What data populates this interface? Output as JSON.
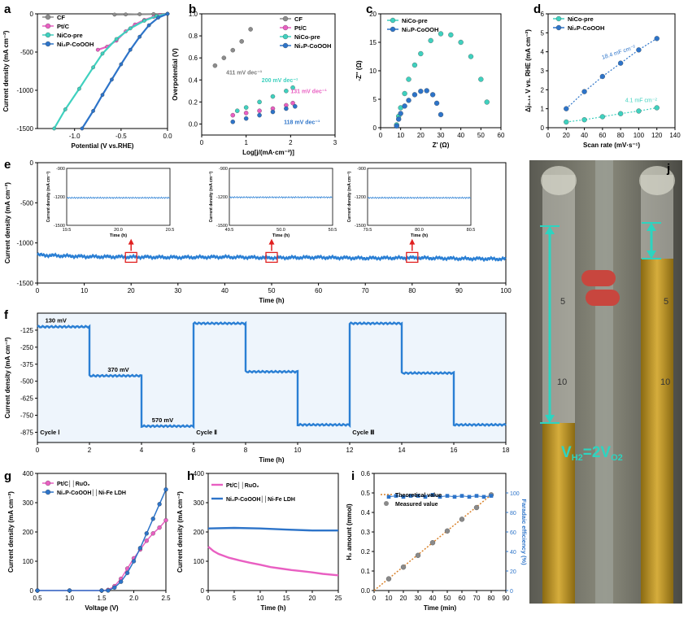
{
  "panel_letters": [
    "a",
    "b",
    "c",
    "d",
    "e",
    "f",
    "g",
    "h",
    "i",
    "j"
  ],
  "colors": {
    "CF": "#8c8c8c",
    "PtC": "#e95fc2",
    "NiCo": "#3fd1bf",
    "Ni2P": "#2d74c9",
    "fitline": "#d9822b",
    "teal_arrow": "#2dd4c0",
    "trace_blue": "#2a7fd4",
    "red_box": "#e02020"
  },
  "photo_j": {
    "label_html": "VH₂=2VO₂",
    "label_parts": [
      "V",
      "H2",
      "=2V",
      "O2"
    ],
    "tube_ticks_left": [
      "5",
      "10"
    ],
    "tube_ticks_right": [
      "5",
      "10"
    ]
  },
  "chart_data": [
    {
      "panel": "a",
      "type": "line",
      "title": "",
      "xlabel": "Potential (V vs.RHE)",
      "ylabel": "Current density (mA cm⁻²)",
      "xlim": [
        -1.4,
        0.0
      ],
      "ylim": [
        -1500,
        0
      ],
      "xticks": [
        "-1.0",
        "-0.5",
        "0.0"
      ],
      "yticks": [
        "0",
        "-500",
        "-1000",
        "-1500"
      ],
      "legend": "top-left",
      "series": [
        {
          "name": "CF",
          "x": [
            -0.57,
            -0.45,
            -0.3,
            -0.15,
            0.0
          ],
          "y": [
            -10,
            -8,
            -5,
            -3,
            0
          ]
        },
        {
          "name": "Pt/C",
          "x": [
            -0.75,
            -0.65,
            -0.55,
            -0.45,
            -0.35,
            -0.25,
            -0.15,
            -0.08,
            0.0
          ],
          "y": [
            -470,
            -430,
            -350,
            -230,
            -140,
            -80,
            -40,
            -15,
            0
          ]
        },
        {
          "name": "NiCo-pre",
          "x": [
            -1.22,
            -1.1,
            -0.95,
            -0.8,
            -0.7,
            -0.55,
            -0.4,
            -0.25,
            -0.12,
            0.0
          ],
          "y": [
            -1500,
            -1250,
            -980,
            -700,
            -520,
            -330,
            -190,
            -90,
            -30,
            0
          ]
        },
        {
          "name": "Ni2P-CoOOH",
          "x": [
            -0.92,
            -0.8,
            -0.7,
            -0.6,
            -0.5,
            -0.4,
            -0.3,
            -0.2,
            -0.1,
            0.0
          ],
          "y": [
            -1500,
            -1270,
            -1060,
            -860,
            -660,
            -470,
            -300,
            -150,
            -50,
            0
          ]
        }
      ],
      "legend_entries": [
        "CF",
        "Pt/C",
        "NiCo-pre",
        "Ni₂P-CoOOH"
      ]
    },
    {
      "panel": "b",
      "type": "line",
      "title": "",
      "xlabel": "Log[j/(mA·cm⁻²)]",
      "ylabel": "Overpotential (V)",
      "xlim": [
        0,
        3
      ],
      "ylim": [
        -0.1,
        1.0
      ],
      "xticks": [
        "0",
        "1",
        "2",
        "3"
      ],
      "yticks": [
        "0.0",
        "0.2",
        "0.4",
        "0.6",
        "0.8",
        "1.0"
      ],
      "legend": "top-right",
      "series": [
        {
          "name": "CF",
          "x": [
            0.3,
            0.5,
            0.7,
            0.9,
            1.1
          ],
          "y": [
            0.53,
            0.6,
            0.67,
            0.75,
            0.86
          ]
        },
        {
          "name": "NiCo-pre",
          "x": [
            0.8,
            1.0,
            1.3,
            1.6,
            1.9,
            2.05
          ],
          "y": [
            0.12,
            0.15,
            0.2,
            0.25,
            0.3,
            0.33
          ]
        },
        {
          "name": "Pt/C",
          "x": [
            0.7,
            1.0,
            1.3,
            1.6,
            1.9,
            2.05
          ],
          "y": [
            0.08,
            0.1,
            0.12,
            0.14,
            0.17,
            0.19
          ]
        },
        {
          "name": "Ni2P-CoOOH",
          "x": [
            0.7,
            1.0,
            1.3,
            1.6,
            1.9,
            2.1
          ],
          "y": [
            0.02,
            0.05,
            0.08,
            0.11,
            0.14,
            0.16
          ]
        }
      ],
      "annotations": [
        "411 mV dec⁻¹",
        "200 mV dec⁻¹",
        "131 mV dec⁻¹",
        "118 mV dec⁻¹"
      ],
      "legend_entries": [
        "CF",
        "Pt/C",
        "NiCo-pre",
        "Ni₂P-CoOOH"
      ]
    },
    {
      "panel": "c",
      "type": "scatter",
      "title": "",
      "xlabel": "Z' (Ω)",
      "ylabel": "-Z'' (Ω)",
      "xlim": [
        0,
        60
      ],
      "ylim": [
        0,
        20
      ],
      "xticks": [
        "0",
        "10",
        "20",
        "30",
        "40",
        "50",
        "60"
      ],
      "yticks": [
        "0",
        "5",
        "10",
        "15",
        "20"
      ],
      "legend": "top-left",
      "series": [
        {
          "name": "NiCo-pre",
          "x": [
            8,
            9,
            10,
            12,
            14,
            17,
            20,
            25,
            30,
            35,
            40,
            45,
            50,
            53
          ],
          "y": [
            0.5,
            2,
            3.5,
            6,
            8.5,
            11,
            13,
            15.3,
            16.5,
            16.3,
            15,
            12.5,
            8.5,
            4.5
          ]
        },
        {
          "name": "Ni2P-CoOOH",
          "x": [
            8,
            9,
            10,
            12,
            14,
            17,
            20,
            23,
            26,
            28,
            30
          ],
          "y": [
            0.3,
            1.5,
            2.5,
            3.8,
            4.8,
            5.8,
            6.4,
            6.5,
            5.8,
            4.3,
            2.3
          ]
        }
      ],
      "legend_entries": [
        "NiCo-pre",
        "Ni₂P-CoOOH"
      ]
    },
    {
      "panel": "d",
      "type": "scatter",
      "title": "",
      "xlabel": "Scan rate (mV·s⁻¹)",
      "ylabel": "Δj₀.₁₄ V vs. RHE (mA cm⁻²)",
      "xlim": [
        0,
        140
      ],
      "ylim": [
        0,
        6
      ],
      "xticks": [
        "0",
        "20",
        "40",
        "60",
        "80",
        "100",
        "120",
        "140"
      ],
      "yticks": [
        "0",
        "1",
        "2",
        "3",
        "4",
        "5",
        "6"
      ],
      "legend": "top-left",
      "series": [
        {
          "name": "NiCo-pre",
          "x": [
            20,
            40,
            60,
            80,
            100,
            120
          ],
          "y": [
            0.3,
            0.42,
            0.58,
            0.74,
            0.88,
            1.05
          ]
        },
        {
          "name": "Ni2P-CoOOH",
          "x": [
            20,
            40,
            60,
            80,
            100,
            120
          ],
          "y": [
            1.0,
            1.9,
            2.7,
            3.4,
            4.1,
            4.7
          ]
        }
      ],
      "annotations": [
        "18.4 mF cm⁻²",
        "4.1 mF cm⁻²"
      ],
      "legend_entries": [
        "NiCo-pre",
        "Ni₂P-CoOOH"
      ]
    },
    {
      "panel": "e",
      "type": "line",
      "title": "",
      "xlabel": "Time (h)",
      "ylabel": "Current density (mA cm⁻²)",
      "xlim": [
        0,
        100
      ],
      "ylim": [
        -1500,
        0
      ],
      "xticks": [
        "0",
        "10",
        "20",
        "30",
        "40",
        "50",
        "60",
        "70",
        "80",
        "90",
        "100"
      ],
      "yticks": [
        "0",
        "-500",
        "-1000",
        "-1500"
      ],
      "series": [
        {
          "name": "",
          "x": [
            0,
            10,
            20,
            30,
            40,
            50,
            60,
            70,
            80,
            90,
            100
          ],
          "y": [
            -1150,
            -1170,
            -1175,
            -1180,
            -1175,
            -1185,
            -1180,
            -1190,
            -1185,
            -1195,
            -1200
          ]
        }
      ],
      "insets": [
        {
          "xlim": [
            19.5,
            20.5
          ],
          "ylim": [
            -1500,
            -900
          ],
          "xticks": [
            "19.5",
            "20.0",
            "20.5"
          ],
          "yticks": [
            "-900",
            "-1200",
            "-1500"
          ],
          "xlabel": "Time (h)",
          "ylabel": "Current density (mA cm⁻²)",
          "level": -1210
        },
        {
          "xlim": [
            49.5,
            50.5
          ],
          "ylim": [
            -1500,
            -900
          ],
          "xticks": [
            "49.5",
            "50.0",
            "50.5"
          ],
          "yticks": [
            "-900",
            "-1200",
            "-1500"
          ],
          "xlabel": "Time (h)",
          "ylabel": "Current density (mA cm⁻²)",
          "level": -1205
        },
        {
          "xlim": [
            79.5,
            80.5
          ],
          "ylim": [
            -1500,
            -900
          ],
          "xticks": [
            "79.5",
            "80.0",
            "80.5"
          ],
          "yticks": [
            "-900",
            "-1200",
            "-1500"
          ],
          "xlabel": "Time (h)",
          "ylabel": "Current density (mA cm⁻²)",
          "level": -1210
        }
      ]
    },
    {
      "panel": "f",
      "type": "line",
      "title": "",
      "xlabel": "Time (h)",
      "ylabel": "Current density (mA cm⁻²)",
      "xlim": [
        0,
        18
      ],
      "ylim": [
        -950,
        0
      ],
      "xticks": [
        "0",
        "2",
        "4",
        "6",
        "8",
        "10",
        "12",
        "14",
        "16",
        "18"
      ],
      "yticks": [
        "-125",
        "-250",
        "-375",
        "-500",
        "-625",
        "-750",
        "-875"
      ],
      "series": [
        {
          "name": "",
          "x": [
            0,
            2,
            2,
            4,
            4,
            6,
            6,
            8,
            8,
            10,
            10,
            12,
            12,
            14,
            14,
            16,
            16,
            18
          ],
          "y": [
            -100,
            -100,
            -460,
            -460,
            -830,
            -830,
            -75,
            -75,
            -430,
            -430,
            -820,
            -820,
            -75,
            -75,
            -440,
            -440,
            -820,
            -820
          ]
        }
      ],
      "annotations": [
        "130 mV",
        "370 mV",
        "570 mV",
        "Cycle Ⅰ",
        "Cycle Ⅱ",
        "Cycle Ⅲ"
      ]
    },
    {
      "panel": "g",
      "type": "line",
      "title": "",
      "xlabel": "Voltage (V)",
      "ylabel": "Current density (mA cm⁻²)",
      "xlim": [
        0.5,
        2.5
      ],
      "ylim": [
        0,
        400
      ],
      "xticks": [
        "0.5",
        "1.0",
        "1.5",
        "2.0",
        "2.5"
      ],
      "yticks": [
        "0",
        "100",
        "200",
        "300",
        "400"
      ],
      "legend": "top-left",
      "series": [
        {
          "name": "Pt/C||RuO2",
          "x": [
            0.5,
            1.0,
            1.5,
            1.6,
            1.7,
            1.8,
            1.9,
            2.0,
            2.1,
            2.2,
            2.3,
            2.4,
            2.5
          ],
          "y": [
            0,
            0,
            0,
            2,
            15,
            40,
            75,
            110,
            140,
            170,
            195,
            215,
            240
          ]
        },
        {
          "name": "Ni2P-CoOOH||Ni-Fe LDH",
          "x": [
            0.5,
            1.0,
            1.5,
            1.6,
            1.7,
            1.8,
            1.9,
            2.0,
            2.1,
            2.2,
            2.3,
            2.4,
            2.5
          ],
          "y": [
            0,
            0,
            0,
            0,
            10,
            30,
            60,
            100,
            145,
            195,
            245,
            295,
            345
          ]
        }
      ],
      "legend_entries": [
        "Pt/C││RuO₂",
        "Ni₂P-CoOOH││Ni-Fe LDH"
      ]
    },
    {
      "panel": "h",
      "type": "line",
      "title": "",
      "xlabel": "Time (h)",
      "ylabel": "Current density (mA cm⁻²)",
      "xlim": [
        0,
        25
      ],
      "ylim": [
        0,
        400
      ],
      "xticks": [
        "0",
        "5",
        "10",
        "15",
        "20",
        "25"
      ],
      "yticks": [
        "0",
        "100",
        "200",
        "300",
        "400"
      ],
      "legend": "top-left",
      "series": [
        {
          "name": "Pt/C||RuO2",
          "x": [
            0,
            1,
            2,
            4,
            6,
            8,
            10,
            12,
            14,
            16,
            18,
            20,
            22,
            25
          ],
          "y": [
            150,
            135,
            125,
            112,
            103,
            95,
            88,
            80,
            75,
            70,
            66,
            62,
            57,
            52
          ]
        },
        {
          "name": "Ni2P-CoOOH||Ni-Fe LDH",
          "x": [
            0,
            5,
            10,
            15,
            20,
            25
          ],
          "y": [
            212,
            214,
            212,
            208,
            205,
            205
          ]
        }
      ],
      "legend_entries": [
        "Pt/C││RuO₂",
        "Ni₂P-CoOOH││Ni-Fe LDH"
      ]
    },
    {
      "panel": "i",
      "type": "line",
      "title": "",
      "xlabel": "Time (min)",
      "ylabel": "H₂ amount (mmol)",
      "ylabel_right": "Faradaic efficiency (%)",
      "xlim": [
        0,
        90
      ],
      "ylim": [
        0,
        0.6
      ],
      "ylim_right": [
        0,
        120
      ],
      "xticks": [
        "0",
        "10",
        "20",
        "30",
        "40",
        "50",
        "60",
        "70",
        "80",
        "90"
      ],
      "yticks": [
        "0.0",
        "0.1",
        "0.2",
        "0.3",
        "0.4",
        "0.5",
        "0.6"
      ],
      "yticks_right": [
        "0",
        "20",
        "40",
        "60",
        "80",
        "100"
      ],
      "legend": "top-left",
      "series": [
        {
          "name": "Theoretical value",
          "x": [
            0,
            80
          ],
          "y": [
            0,
            0.49
          ]
        },
        {
          "name": "Measured value",
          "x": [
            10,
            20,
            30,
            40,
            50,
            60,
            70,
            80
          ],
          "y": [
            0.06,
            0.12,
            0.18,
            0.245,
            0.305,
            0.365,
            0.425,
            0.49
          ]
        },
        {
          "name": "",
          "x": [
            10,
            15,
            20,
            25,
            30,
            35,
            40,
            45,
            50,
            55,
            60,
            65,
            70,
            75,
            80
          ],
          "y_right": [
            96,
            97,
            96,
            97,
            97,
            96,
            98,
            96,
            97,
            96,
            97,
            96,
            97,
            96,
            97
          ]
        }
      ],
      "legend_entries": [
        "Theoretical value",
        "Measured value"
      ]
    }
  ]
}
